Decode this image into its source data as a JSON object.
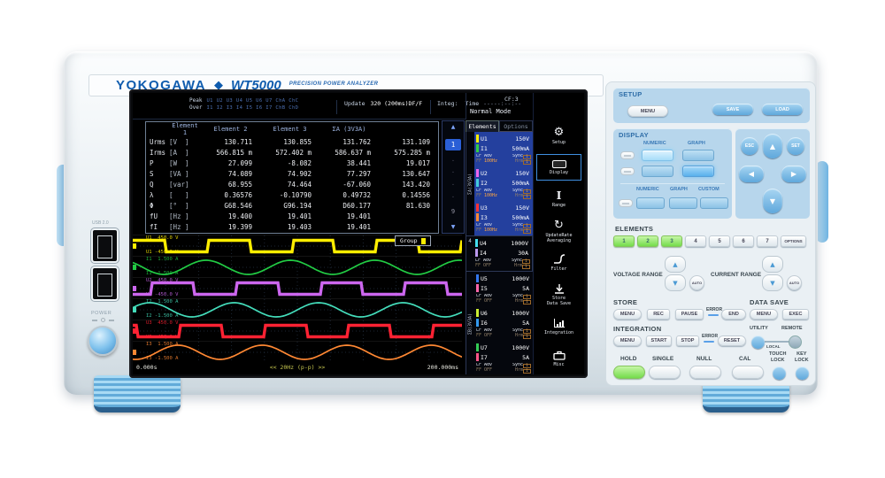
{
  "brand": {
    "logo": "YOKOGAWA",
    "diamond": "◆",
    "model": "WT5000",
    "tagline": "PRECISION POWER ANALYZER"
  },
  "left_io": {
    "usb_label": "USB 2.0",
    "power_label": "POWER"
  },
  "screen": {
    "status": {
      "peak_label": "Peak",
      "peak_channels": "U1 U2 U3 U4 U5 U6 U7 ChA ChC",
      "over_label": "Over",
      "over_channels": "I1 I2 I3 I4 I5 I6 I7 ChB ChD",
      "update_label": "Update",
      "update_value": "320 (200ms)DF/F",
      "integ_label": "Integ:",
      "time_label": "Time",
      "time_value": "-----:--:--",
      "cf": "CF:3",
      "mode": "Normal Mode",
      "help": "?"
    },
    "table": {
      "headers": [
        "",
        "Element 1",
        "Element 2",
        "Element 3",
        "ΣA (3V3A)"
      ],
      "rows": [
        {
          "f": "Urms",
          "unit": "[V  ]",
          "v": [
            "130.711",
            "130.855",
            "131.762",
            "131.109"
          ]
        },
        {
          "f": "Irms",
          "unit": "[A  ]",
          "v": [
            "566.815 m",
            "572.402 m",
            "586.637 m",
            "575.285 m"
          ]
        },
        {
          "f": "P",
          "unit": "[W  ]",
          "v": [
            "27.099",
            "-8.082",
            "38.441",
            "19.017"
          ]
        },
        {
          "f": "S",
          "unit": "[VA ]",
          "v": [
            "74.089",
            "74.902",
            "77.297",
            "130.647"
          ]
        },
        {
          "f": "Q",
          "unit": "[var]",
          "v": [
            "68.955",
            "74.464",
            "-67.060",
            "143.420"
          ]
        },
        {
          "f": "λ",
          "unit": "[   ]",
          "v": [
            "0.36576",
            "-0.10790",
            "0.49732",
            "0.14556"
          ]
        },
        {
          "f": "Φ",
          "unit": "[°  ]",
          "v": [
            "G68.546",
            "G96.194",
            "D60.177",
            "81.630"
          ]
        },
        {
          "f": "fU",
          "unit": "[Hz ]",
          "v": [
            "19.400",
            "19.401",
            "19.401",
            ""
          ]
        },
        {
          "f": "fI",
          "unit": "[Hz ]",
          "v": [
            "19.399",
            "19.403",
            "19.401",
            ""
          ]
        }
      ]
    },
    "pager": {
      "up": "▲",
      "current": "1",
      "dots": [
        "·",
        "·",
        "·",
        "·"
      ],
      "last": "9",
      "down": "▼"
    },
    "waveform": {
      "group_label": "Group",
      "t0": "0.000s",
      "t1": "200.000ms",
      "center_note": "<< 20Hz (p-p) >>",
      "cycles": 3.9,
      "strips": [
        {
          "ch": "U1",
          "type": "square",
          "color": "#ffee00",
          "top": "U1  450.0 V",
          "bottom": "U1 -450.0 V",
          "phase": 0.69
        },
        {
          "ch": "I1",
          "type": "sine",
          "color": "#22cc44",
          "top": "I1  1.500 A",
          "bottom": "I1 -1.500 A",
          "phase": 2.4
        },
        {
          "ch": "U2",
          "type": "square",
          "color": "#cc66ee",
          "top": "U2  450.0 V",
          "bottom": "U2 -450.0 V",
          "phase": -1.4
        },
        {
          "ch": "I2",
          "type": "sine",
          "color": "#44ddbb",
          "top": "I2  1.500 A",
          "bottom": "I2 -1.500 A",
          "phase": 0.31
        },
        {
          "ch": "U3",
          "type": "square",
          "color": "#ff2233",
          "top": "U3  450.0 V",
          "bottom": "U3 -450.0 V",
          "phase": 2.78
        },
        {
          "ch": "I3",
          "type": "sine",
          "color": "#ff8833",
          "top": "I3  1.500 A",
          "bottom": "I3 -1.500 A",
          "phase": 4.49
        }
      ]
    },
    "elements_panel": {
      "tabs": [
        {
          "label": "Elements",
          "active": true
        },
        {
          "label": "Options",
          "active": false
        }
      ],
      "sub_labels": {
        "lf": "LF",
        "ff": "FF",
        "adv": "Adv",
        "sync": "Sync",
        "hrm": "Hrm",
        "badge": "1"
      },
      "groups": [
        {
          "label": "ΣA(3V3A)",
          "highlight": true,
          "items": [
            {
              "u": "U1",
              "u_range": "150V",
              "u_color": "#ffee00",
              "i": "I1",
              "i_range": "500mA",
              "i_color": "#33cc44",
              "adv": "100Hz"
            },
            {
              "u": "U2",
              "u_range": "150V",
              "u_color": "#ee66ee",
              "i": "I2",
              "i_range": "500mA",
              "i_color": "#44ccdd",
              "adv": "100Hz"
            },
            {
              "u": "U3",
              "u_range": "150V",
              "u_color": "#ff3333",
              "i": "I3",
              "i_range": "500mA",
              "i_color": "#ff8833",
              "adv": "100Hz"
            }
          ]
        },
        {
          "label": "4",
          "highlight": false,
          "items": [
            {
              "u": "U4",
              "u_range": "1000V",
              "u_color": "#44ddee",
              "i": "I4",
              "i_range": "30A",
              "i_color": "#bb99ee",
              "adv": "OFF"
            }
          ]
        },
        {
          "label": "ΣB(3V3A)",
          "highlight": false,
          "items": [
            {
              "u": "U5",
              "u_range": "1000V",
              "u_color": "#3377ee",
              "i": "I5",
              "i_range": "5A",
              "i_color": "#ff66aa",
              "adv": "OFF"
            },
            {
              "u": "U6",
              "u_range": "1000V",
              "u_color": "#ccee33",
              "i": "I6",
              "i_range": "5A",
              "i_color": "#3399ee",
              "adv": "OFF"
            },
            {
              "u": "U7",
              "u_range": "1000V",
              "u_color": "#33cc55",
              "i": "I7",
              "i_range": "5A",
              "i_color": "#ff5588",
              "adv": "OFF"
            }
          ]
        }
      ]
    },
    "sidebar": [
      {
        "name": "setup",
        "label": "Setup",
        "active": false
      },
      {
        "name": "display",
        "label": "Display",
        "active": true
      },
      {
        "name": "range",
        "label": "Range",
        "active": false
      },
      {
        "name": "update-rate-averaging",
        "label": "UpdateRate\nAveraging",
        "active": false
      },
      {
        "name": "filter",
        "label": "Filter",
        "active": false
      },
      {
        "name": "store-data-save",
        "label": "Store\nData Save",
        "active": false
      },
      {
        "name": "integration",
        "label": "Integration",
        "active": false
      },
      {
        "name": "misc",
        "label": "Misc",
        "active": false
      }
    ]
  },
  "panel": {
    "setup": {
      "title": "SETUP",
      "menu": "MENU",
      "save": "SAVE",
      "load": "LOAD"
    },
    "display": {
      "title": "DISPLAY",
      "numeric": "NUMERIC",
      "graph": "GRAPH",
      "numeric2": "NUMERIC",
      "graph2": "GRAPH",
      "custom": "CUSTOM"
    },
    "nav": {
      "esc": "ESC",
      "set": "SET",
      "up": "▲",
      "down": "▼",
      "left": "◀",
      "right": "▶"
    },
    "elements": {
      "title": "ELEMENTS",
      "keys": [
        "1",
        "2",
        "3",
        "4",
        "5",
        "6",
        "7"
      ],
      "lit": [
        "1",
        "2",
        "3"
      ],
      "options": "OPTIONS"
    },
    "range": {
      "voltage": "VOLTAGE RANGE",
      "current": "CURRENT RANGE",
      "auto": "AUTO",
      "up": "▲",
      "down": "▼"
    },
    "store": {
      "title": "STORE",
      "menu": "MENU",
      "rec": "REC",
      "pause": "PAUSE",
      "error": "ERROR",
      "end": "END"
    },
    "data_save": {
      "title": "DATA SAVE",
      "menu": "MENU",
      "exec": "EXEC"
    },
    "integration": {
      "title": "INTEGRATION",
      "menu": "MENU",
      "start": "START",
      "stop": "STOP",
      "error": "ERROR",
      "reset": "RESET"
    },
    "remote": {
      "utility": "UTILITY",
      "remote": "REMOTE",
      "local": "LOCAL"
    },
    "bottom": {
      "hold": "HOLD",
      "single": "SINGLE",
      "null_label": "NULL",
      "cal": "CAL"
    },
    "locks": {
      "touch": "TOUCH\nLOCK",
      "key": "KEY\nLOCK"
    }
  }
}
